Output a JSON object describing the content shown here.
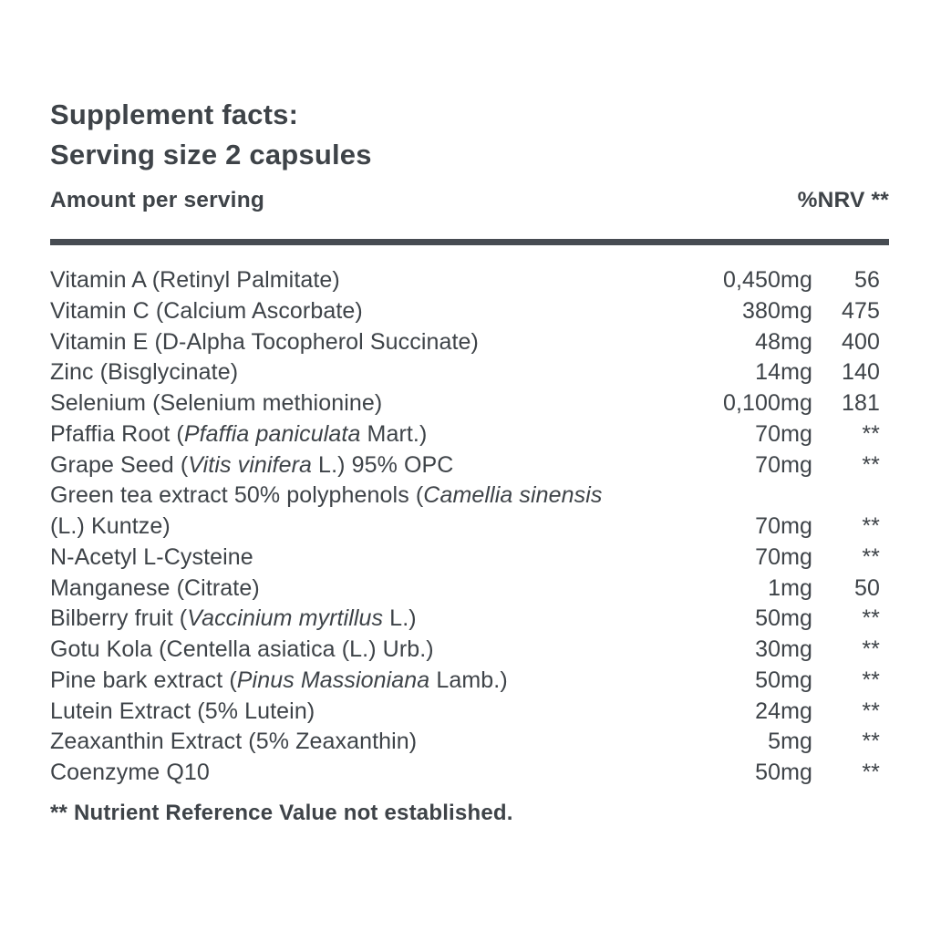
{
  "label": {
    "title_line1": "Supplement facts:",
    "title_line2": "Serving size 2 capsules",
    "columns": {
      "amount_header": "Amount per serving",
      "nrv_header": "%NRV **"
    },
    "rows": [
      {
        "name": [
          {
            "t": "Vitamin A (Retinyl Palmitate)"
          }
        ],
        "amount": "0,450mg",
        "nrv": "56"
      },
      {
        "name": [
          {
            "t": "Vitamin C (Calcium Ascorbate)"
          }
        ],
        "amount": "380mg",
        "nrv": "475"
      },
      {
        "name": [
          {
            "t": "Vitamin E (D-Alpha Tocopherol Succinate)"
          }
        ],
        "amount": "48mg",
        "nrv": "400"
      },
      {
        "name": [
          {
            "t": "Zinc (Bisglycinate)"
          }
        ],
        "amount": "14mg",
        "nrv": "140"
      },
      {
        "name": [
          {
            "t": "Selenium (Selenium methionine)"
          }
        ],
        "amount": "0,100mg",
        "nrv": "181"
      },
      {
        "name": [
          {
            "t": "Pfaffia Root ("
          },
          {
            "t": "Pfaffia paniculata",
            "i": true
          },
          {
            "t": " Mart.)"
          }
        ],
        "amount": "70mg",
        "nrv": "**"
      },
      {
        "name": [
          {
            "t": "Grape Seed ("
          },
          {
            "t": "Vitis vinifera",
            "i": true
          },
          {
            "t": " L.) 95% OPC"
          }
        ],
        "amount": "70mg",
        "nrv": "**"
      },
      {
        "name": [
          {
            "t": "Green tea extract 50% polyphenols ("
          },
          {
            "t": "Camellia sinensis",
            "i": true
          },
          {
            "t": "\n(L.) Kuntze)"
          }
        ],
        "amount": "70mg",
        "nrv": "**"
      },
      {
        "name": [
          {
            "t": "N-Acetyl L-Cysteine"
          }
        ],
        "amount": "70mg",
        "nrv": "**"
      },
      {
        "name": [
          {
            "t": "Manganese (Citrate)"
          }
        ],
        "amount": "1mg",
        "nrv": "50"
      },
      {
        "name": [
          {
            "t": "Bilberry fruit ("
          },
          {
            "t": "Vaccinium myrtillus",
            "i": true
          },
          {
            "t": " L.)"
          }
        ],
        "amount": "50mg",
        "nrv": "**"
      },
      {
        "name": [
          {
            "t": "Gotu Kola (Centella asiatica (L.) Urb.)"
          }
        ],
        "amount": "30mg",
        "nrv": "**"
      },
      {
        "name": [
          {
            "t": "Pine bark extract ("
          },
          {
            "t": "Pinus Massioniana",
            "i": true
          },
          {
            "t": " Lamb.)"
          }
        ],
        "amount": "50mg",
        "nrv": "**"
      },
      {
        "name": [
          {
            "t": "Lutein Extract (5% Lutein)"
          }
        ],
        "amount": "24mg",
        "nrv": "**"
      },
      {
        "name": [
          {
            "t": "Zeaxanthin Extract (5% Zeaxanthin)"
          }
        ],
        "amount": "5mg",
        "nrv": "**"
      },
      {
        "name": [
          {
            "t": "Coenzyme Q10"
          }
        ],
        "amount": "50mg",
        "nrv": "**"
      }
    ],
    "footnote": "** Nutrient Reference Value not established.",
    "colors": {
      "text": "#3e4348",
      "rule": "#474c52"
    }
  }
}
